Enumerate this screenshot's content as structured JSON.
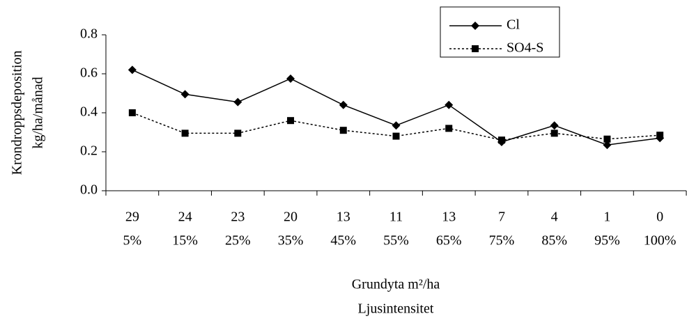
{
  "chart_data": {
    "type": "line",
    "categories": [
      "29",
      "24",
      "23",
      "20",
      "13",
      "11",
      "13",
      "7",
      "4",
      "1",
      "0"
    ],
    "sub_categories": [
      "5%",
      "15%",
      "25%",
      "35%",
      "45%",
      "55%",
      "65%",
      "75%",
      "85%",
      "95%",
      "100%"
    ],
    "xlabel": [
      "Grundyta m²/ha",
      "Ljusintensitet"
    ],
    "ylabel": [
      "Krondroppsdeposition",
      "kg/ha/månad"
    ],
    "ylim": [
      0,
      0.8
    ],
    "yticks": [
      {
        "value": 0,
        "label": "0.0"
      },
      0.2,
      0.4,
      0.6,
      0.8
    ],
    "grid": false,
    "legend": "top-right",
    "series": [
      {
        "name": "Cl",
        "color": "#000000",
        "marker": "diamond",
        "line_style": "solid",
        "values": [
          0.62,
          0.495,
          0.455,
          0.575,
          0.44,
          0.335,
          0.44,
          0.25,
          0.335,
          0.235,
          0.27
        ]
      },
      {
        "name": "SO4-S",
        "color": "#000000",
        "marker": "square",
        "line_style": "dotted",
        "values": [
          0.4,
          0.295,
          0.295,
          0.36,
          0.31,
          0.28,
          0.32,
          0.26,
          0.295,
          0.265,
          0.285
        ]
      }
    ]
  }
}
